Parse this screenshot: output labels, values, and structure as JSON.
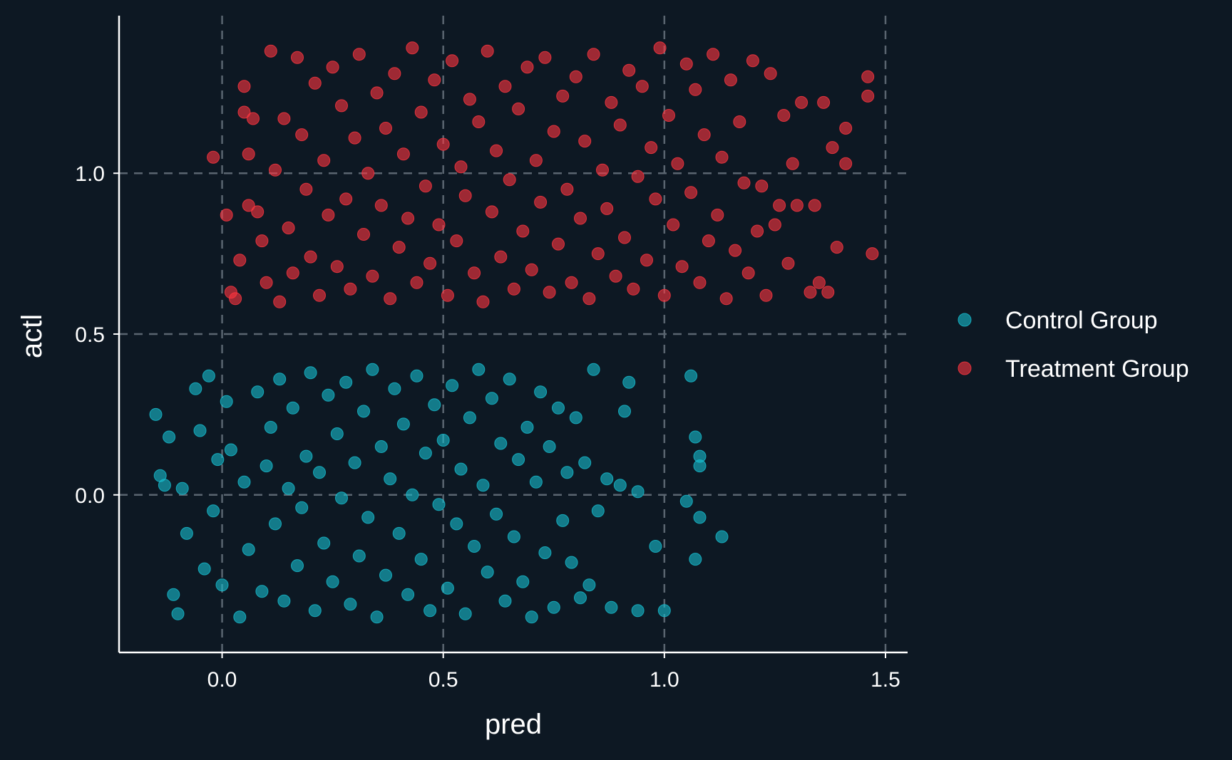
{
  "chart_data": {
    "type": "scatter",
    "title": "",
    "xlabel": "pred",
    "ylabel": "actl",
    "xlim": [
      -0.233,
      1.55
    ],
    "ylim": [
      -0.49,
      1.49
    ],
    "xticks": [
      0.0,
      0.5,
      1.0,
      1.5
    ],
    "xtick_labels": [
      "0.0",
      "0.5",
      "1.0",
      "1.5"
    ],
    "yticks": [
      0.0,
      0.5,
      1.0
    ],
    "ytick_labels": [
      "0.0",
      "0.5",
      "1.0"
    ],
    "grid": true,
    "legend_position": "right",
    "colors": {
      "background": "#0d1823",
      "axis": "#ffffff",
      "grid": "#5a6570",
      "text": "#ffffff"
    },
    "series": [
      {
        "name": "Control Group",
        "color": "#17becf",
        "points": [
          [
            -0.15,
            0.25
          ],
          [
            -0.14,
            0.06
          ],
          [
            -0.13,
            0.03
          ],
          [
            -0.12,
            0.18
          ],
          [
            -0.11,
            -0.31
          ],
          [
            -0.1,
            -0.37
          ],
          [
            -0.09,
            0.02
          ],
          [
            -0.08,
            -0.12
          ],
          [
            -0.06,
            0.33
          ],
          [
            -0.05,
            0.2
          ],
          [
            -0.04,
            -0.23
          ],
          [
            -0.03,
            0.37
          ],
          [
            -0.02,
            -0.05
          ],
          [
            -0.01,
            0.11
          ],
          [
            0.0,
            -0.28
          ],
          [
            0.01,
            0.29
          ],
          [
            0.02,
            0.14
          ],
          [
            0.04,
            -0.38
          ],
          [
            0.05,
            0.04
          ],
          [
            0.06,
            -0.17
          ],
          [
            0.08,
            0.32
          ],
          [
            0.09,
            -0.3
          ],
          [
            0.1,
            0.09
          ],
          [
            0.11,
            0.21
          ],
          [
            0.12,
            -0.09
          ],
          [
            0.13,
            0.36
          ],
          [
            0.14,
            -0.33
          ],
          [
            0.15,
            0.02
          ],
          [
            0.16,
            0.27
          ],
          [
            0.17,
            -0.22
          ],
          [
            0.18,
            -0.04
          ],
          [
            0.19,
            0.12
          ],
          [
            0.2,
            0.38
          ],
          [
            0.21,
            -0.36
          ],
          [
            0.22,
            0.07
          ],
          [
            0.23,
            -0.15
          ],
          [
            0.24,
            0.31
          ],
          [
            0.25,
            -0.27
          ],
          [
            0.26,
            0.19
          ],
          [
            0.27,
            -0.01
          ],
          [
            0.28,
            0.35
          ],
          [
            0.29,
            -0.34
          ],
          [
            0.3,
            0.1
          ],
          [
            0.31,
            -0.19
          ],
          [
            0.32,
            0.26
          ],
          [
            0.33,
            -0.07
          ],
          [
            0.34,
            0.39
          ],
          [
            0.35,
            -0.38
          ],
          [
            0.36,
            0.15
          ],
          [
            0.37,
            -0.25
          ],
          [
            0.38,
            0.05
          ],
          [
            0.39,
            0.33
          ],
          [
            0.4,
            -0.12
          ],
          [
            0.41,
            0.22
          ],
          [
            0.42,
            -0.31
          ],
          [
            0.43,
            0.0
          ],
          [
            0.44,
            0.37
          ],
          [
            0.45,
            -0.2
          ],
          [
            0.46,
            0.13
          ],
          [
            0.47,
            -0.36
          ],
          [
            0.48,
            0.28
          ],
          [
            0.49,
            -0.03
          ],
          [
            0.5,
            0.17
          ],
          [
            0.51,
            -0.29
          ],
          [
            0.52,
            0.34
          ],
          [
            0.53,
            -0.09
          ],
          [
            0.54,
            0.08
          ],
          [
            0.55,
            -0.37
          ],
          [
            0.56,
            0.24
          ],
          [
            0.57,
            -0.16
          ],
          [
            0.58,
            0.39
          ],
          [
            0.59,
            0.03
          ],
          [
            0.6,
            -0.24
          ],
          [
            0.61,
            0.3
          ],
          [
            0.62,
            -0.06
          ],
          [
            0.63,
            0.16
          ],
          [
            0.64,
            -0.33
          ],
          [
            0.65,
            0.36
          ],
          [
            0.66,
            -0.13
          ],
          [
            0.67,
            0.11
          ],
          [
            0.68,
            -0.27
          ],
          [
            0.69,
            0.21
          ],
          [
            0.7,
            -0.38
          ],
          [
            0.71,
            0.04
          ],
          [
            0.72,
            0.32
          ],
          [
            0.73,
            -0.18
          ],
          [
            0.74,
            0.15
          ],
          [
            0.75,
            -0.35
          ],
          [
            0.76,
            0.27
          ],
          [
            0.77,
            -0.08
          ],
          [
            0.78,
            0.07
          ],
          [
            0.79,
            -0.21
          ],
          [
            0.8,
            0.24
          ],
          [
            0.81,
            -0.32
          ],
          [
            0.82,
            0.1
          ],
          [
            0.83,
            -0.28
          ],
          [
            0.84,
            0.39
          ],
          [
            0.85,
            -0.05
          ],
          [
            0.87,
            0.05
          ],
          [
            0.88,
            -0.35
          ],
          [
            0.9,
            0.03
          ],
          [
            0.91,
            0.26
          ],
          [
            0.92,
            0.35
          ],
          [
            0.94,
            0.01
          ],
          [
            0.94,
            -0.36
          ],
          [
            0.98,
            -0.16
          ],
          [
            1.0,
            -0.36
          ],
          [
            1.05,
            -0.02
          ],
          [
            1.06,
            0.37
          ],
          [
            1.07,
            0.18
          ],
          [
            1.07,
            -0.2
          ],
          [
            1.08,
            0.12
          ],
          [
            1.08,
            0.09
          ],
          [
            1.08,
            -0.07
          ],
          [
            1.13,
            -0.13
          ]
        ]
      },
      {
        "name": "Treatment Group",
        "color": "#ff3640",
        "points": [
          [
            -0.02,
            1.05
          ],
          [
            0.01,
            0.87
          ],
          [
            0.02,
            0.63
          ],
          [
            0.03,
            0.61
          ],
          [
            0.04,
            0.73
          ],
          [
            0.05,
            1.27
          ],
          [
            0.05,
            1.19
          ],
          [
            0.06,
            1.06
          ],
          [
            0.06,
            0.9
          ],
          [
            0.07,
            1.17
          ],
          [
            0.08,
            0.88
          ],
          [
            0.09,
            0.79
          ],
          [
            0.1,
            0.66
          ],
          [
            0.11,
            1.38
          ],
          [
            0.12,
            1.01
          ],
          [
            0.13,
            0.6
          ],
          [
            0.14,
            1.17
          ],
          [
            0.15,
            0.83
          ],
          [
            0.16,
            0.69
          ],
          [
            0.17,
            1.36
          ],
          [
            0.18,
            1.12
          ],
          [
            0.19,
            0.95
          ],
          [
            0.2,
            0.74
          ],
          [
            0.21,
            1.28
          ],
          [
            0.22,
            0.62
          ],
          [
            0.23,
            1.04
          ],
          [
            0.24,
            0.87
          ],
          [
            0.25,
            1.33
          ],
          [
            0.26,
            0.71
          ],
          [
            0.27,
            1.21
          ],
          [
            0.28,
            0.92
          ],
          [
            0.29,
            0.64
          ],
          [
            0.3,
            1.11
          ],
          [
            0.31,
            1.37
          ],
          [
            0.32,
            0.81
          ],
          [
            0.33,
            1.0
          ],
          [
            0.34,
            0.68
          ],
          [
            0.35,
            1.25
          ],
          [
            0.36,
            0.9
          ],
          [
            0.37,
            1.14
          ],
          [
            0.38,
            0.61
          ],
          [
            0.39,
            1.31
          ],
          [
            0.4,
            0.77
          ],
          [
            0.41,
            1.06
          ],
          [
            0.42,
            0.86
          ],
          [
            0.43,
            1.39
          ],
          [
            0.44,
            0.66
          ],
          [
            0.45,
            1.19
          ],
          [
            0.46,
            0.96
          ],
          [
            0.47,
            0.72
          ],
          [
            0.48,
            1.29
          ],
          [
            0.49,
            0.84
          ],
          [
            0.5,
            1.09
          ],
          [
            0.51,
            0.62
          ],
          [
            0.52,
            1.35
          ],
          [
            0.53,
            0.79
          ],
          [
            0.54,
            1.02
          ],
          [
            0.55,
            0.93
          ],
          [
            0.56,
            1.23
          ],
          [
            0.57,
            0.69
          ],
          [
            0.58,
            1.16
          ],
          [
            0.59,
            0.6
          ],
          [
            0.6,
            1.38
          ],
          [
            0.61,
            0.88
          ],
          [
            0.62,
            1.07
          ],
          [
            0.63,
            0.74
          ],
          [
            0.64,
            1.27
          ],
          [
            0.65,
            0.98
          ],
          [
            0.66,
            0.64
          ],
          [
            0.67,
            1.2
          ],
          [
            0.68,
            0.82
          ],
          [
            0.69,
            1.33
          ],
          [
            0.7,
            0.7
          ],
          [
            0.71,
            1.04
          ],
          [
            0.72,
            0.91
          ],
          [
            0.73,
            1.36
          ],
          [
            0.74,
            0.63
          ],
          [
            0.75,
            1.13
          ],
          [
            0.76,
            0.78
          ],
          [
            0.77,
            1.24
          ],
          [
            0.78,
            0.95
          ],
          [
            0.79,
            0.66
          ],
          [
            0.8,
            1.3
          ],
          [
            0.81,
            0.86
          ],
          [
            0.82,
            1.1
          ],
          [
            0.83,
            0.61
          ],
          [
            0.84,
            1.37
          ],
          [
            0.85,
            0.75
          ],
          [
            0.86,
            1.01
          ],
          [
            0.87,
            0.89
          ],
          [
            0.88,
            1.22
          ],
          [
            0.89,
            0.68
          ],
          [
            0.9,
            1.15
          ],
          [
            0.91,
            0.8
          ],
          [
            0.92,
            1.32
          ],
          [
            0.93,
            0.64
          ],
          [
            0.94,
            0.99
          ],
          [
            0.95,
            1.27
          ],
          [
            0.96,
            0.73
          ],
          [
            0.97,
            1.08
          ],
          [
            0.98,
            0.92
          ],
          [
            0.99,
            1.39
          ],
          [
            1.0,
            0.62
          ],
          [
            1.01,
            1.18
          ],
          [
            1.02,
            0.84
          ],
          [
            1.03,
            1.03
          ],
          [
            1.04,
            0.71
          ],
          [
            1.05,
            1.34
          ],
          [
            1.06,
            0.94
          ],
          [
            1.07,
            1.26
          ],
          [
            1.08,
            0.66
          ],
          [
            1.09,
            1.12
          ],
          [
            1.1,
            0.79
          ],
          [
            1.11,
            1.37
          ],
          [
            1.12,
            0.87
          ],
          [
            1.13,
            1.05
          ],
          [
            1.14,
            0.61
          ],
          [
            1.15,
            1.29
          ],
          [
            1.16,
            0.76
          ],
          [
            1.17,
            1.16
          ],
          [
            1.18,
            0.97
          ],
          [
            1.19,
            0.69
          ],
          [
            1.2,
            1.35
          ],
          [
            1.21,
            0.82
          ],
          [
            1.22,
            0.96
          ],
          [
            1.23,
            0.62
          ],
          [
            1.24,
            1.31
          ],
          [
            1.25,
            0.84
          ],
          [
            1.26,
            0.9
          ],
          [
            1.27,
            1.18
          ],
          [
            1.28,
            0.72
          ],
          [
            1.29,
            1.03
          ],
          [
            1.3,
            0.9
          ],
          [
            1.31,
            1.22
          ],
          [
            1.33,
            0.63
          ],
          [
            1.34,
            0.9
          ],
          [
            1.35,
            0.66
          ],
          [
            1.36,
            1.22
          ],
          [
            1.37,
            0.63
          ],
          [
            1.38,
            1.08
          ],
          [
            1.39,
            0.77
          ],
          [
            1.41,
            1.14
          ],
          [
            1.41,
            1.03
          ],
          [
            1.46,
            1.3
          ],
          [
            1.46,
            1.24
          ],
          [
            1.47,
            0.75
          ]
        ]
      }
    ],
    "legend": [
      "Control Group",
      "Treatment Group"
    ]
  }
}
